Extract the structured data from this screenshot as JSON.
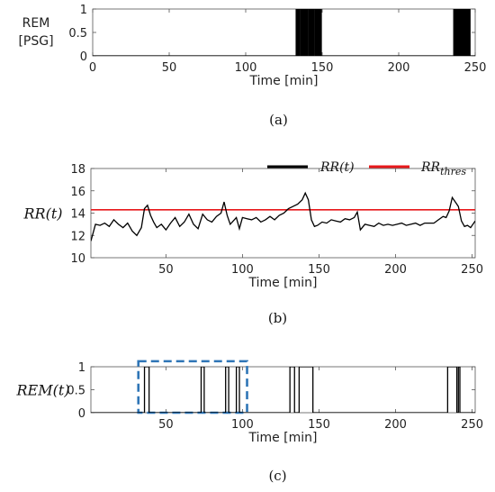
{
  "chart_data": [
    {
      "id": "a",
      "type": "line",
      "caption": "(a)",
      "ylabel_lines": [
        "REM",
        "[PSG]"
      ],
      "xlabel": "Time [min]",
      "xlim": [
        0,
        250
      ],
      "ylim": [
        0,
        1
      ],
      "xticks": [
        0,
        50,
        100,
        150,
        200,
        250
      ],
      "yticks": [
        0,
        0.5,
        1
      ],
      "ytick_labels": [
        "0",
        "0.5",
        "1"
      ],
      "series": [
        {
          "color": "#000000",
          "step_segments": [
            [
              133,
              133.6
            ],
            [
              134.2,
              134.6
            ],
            [
              135.1,
              135.9
            ],
            [
              136.4,
              136.8
            ],
            [
              137.3,
              138.0
            ],
            [
              138.5,
              139.1
            ],
            [
              139.6,
              140.0
            ],
            [
              140.5,
              141.3
            ],
            [
              141.8,
              142.2
            ],
            [
              142.7,
              143.4
            ],
            [
              143.9,
              144.3
            ],
            [
              144.8,
              145.6
            ],
            [
              146.1,
              146.5
            ],
            [
              147.0,
              147.6
            ],
            [
              148.1,
              148.5
            ],
            [
              149.0,
              149.4
            ],
            [
              236,
              236.5
            ],
            [
              237.0,
              237.4
            ],
            [
              237.9,
              238.6
            ],
            [
              239.1,
              239.5
            ],
            [
              240.0,
              240.7
            ],
            [
              241.2,
              241.6
            ],
            [
              242.1,
              242.8
            ],
            [
              243.3,
              243.7
            ],
            [
              244.2,
              244.8
            ],
            [
              245.3,
              245.7
            ],
            [
              246.2,
              246.6
            ]
          ]
        }
      ]
    },
    {
      "id": "b",
      "type": "line",
      "caption": "(b)",
      "ylabel": "RR(t)",
      "xlabel": "Time [min]",
      "xlim": [
        1,
        252
      ],
      "ylim": [
        10,
        18
      ],
      "xticks": [
        50,
        100,
        150,
        200,
        250
      ],
      "yticks": [
        10,
        12,
        14,
        16,
        18
      ],
      "legend": {
        "position": "top-right",
        "entries": [
          {
            "label": "RR(t)",
            "color": "#000000"
          },
          {
            "label": "RR_thres",
            "color": "#e8181b"
          }
        ]
      },
      "threshold": 14.3,
      "series": [
        {
          "name": "RR(t)",
          "color": "#000000",
          "x": [
            1,
            4,
            7,
            10,
            13,
            16,
            19,
            22,
            25,
            28,
            31,
            34,
            36,
            38,
            40,
            42,
            44,
            47,
            50,
            53,
            56,
            59,
            62,
            65,
            68,
            71,
            74,
            77,
            80,
            83,
            86,
            88,
            90,
            92,
            94,
            96,
            98,
            100,
            103,
            106,
            109,
            112,
            115,
            118,
            121,
            124,
            127,
            130,
            133,
            136,
            139,
            141,
            143,
            145,
            147,
            149,
            152,
            155,
            158,
            161,
            164,
            167,
            170,
            173,
            175,
            177,
            180,
            183,
            186,
            189,
            192,
            195,
            198,
            201,
            204,
            207,
            210,
            213,
            216,
            219,
            222,
            225,
            228,
            231,
            233,
            235,
            237,
            239,
            241,
            243,
            245,
            247,
            249,
            252
          ],
          "y": [
            11.5,
            13.0,
            12.9,
            13.1,
            12.8,
            13.4,
            13.0,
            12.7,
            13.1,
            12.4,
            12.0,
            12.7,
            14.4,
            14.7,
            13.8,
            13.2,
            12.7,
            13.0,
            12.5,
            13.1,
            13.6,
            12.8,
            13.2,
            13.9,
            13.0,
            12.6,
            13.9,
            13.4,
            13.2,
            13.7,
            14.0,
            15.0,
            13.8,
            13.0,
            13.3,
            13.6,
            12.6,
            13.6,
            13.5,
            13.4,
            13.6,
            13.2,
            13.4,
            13.7,
            13.4,
            13.8,
            14.0,
            14.4,
            14.6,
            14.8,
            15.2,
            15.8,
            15.2,
            13.4,
            12.8,
            12.9,
            13.2,
            13.1,
            13.4,
            13.3,
            13.2,
            13.5,
            13.4,
            13.6,
            14.1,
            12.5,
            13.0,
            12.9,
            12.8,
            13.1,
            12.9,
            13.0,
            12.9,
            13.0,
            13.1,
            12.9,
            13.0,
            13.1,
            12.9,
            13.1,
            13.1,
            13.1,
            13.4,
            13.7,
            13.6,
            14.2,
            15.4,
            15.0,
            14.6,
            13.3,
            12.8,
            12.9,
            12.7,
            13.3
          ]
        }
      ]
    },
    {
      "id": "c",
      "type": "line",
      "caption": "(c)",
      "ylabel": "REM(t)",
      "xlabel": "Time [min]",
      "xlim": [
        1,
        252
      ],
      "ylim": [
        0,
        1
      ],
      "xticks": [
        50,
        100,
        150,
        200,
        250
      ],
      "yticks": [
        0,
        0.5,
        1
      ],
      "ytick_labels": [
        "0",
        "0.5",
        "1"
      ],
      "highlight_box": {
        "x": [
          32,
          103
        ],
        "y": [
          0,
          1.12
        ],
        "color": "#2e75b6"
      },
      "series": [
        {
          "color": "#000000",
          "step_segments": [
            [
              36,
              39
            ],
            [
              73,
              75
            ],
            [
              89,
              91
            ],
            [
              96,
              98
            ],
            [
              131,
              134
            ],
            [
              137,
              146
            ],
            [
              234,
              240
            ],
            [
              241,
              242
            ]
          ]
        }
      ]
    }
  ]
}
